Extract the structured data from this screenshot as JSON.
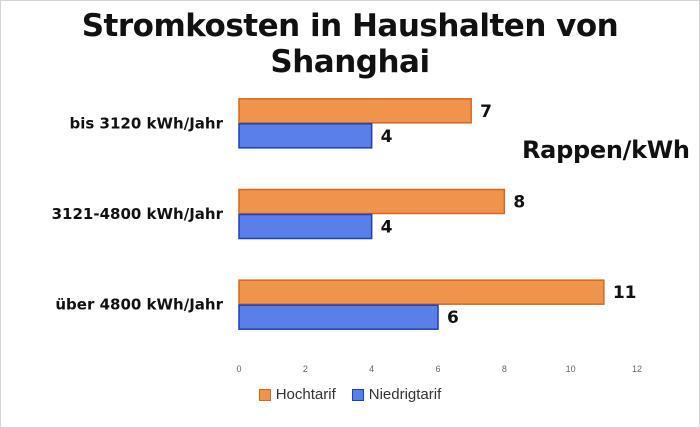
{
  "chart_data": {
    "type": "bar",
    "orientation": "horizontal",
    "title": "Stromkosten in Haushalten von Shanghai",
    "unit_label": "Rappen/kWh",
    "categories": [
      "bis 3120 kWh/Jahr",
      "3121-4800 kWh/Jahr",
      "über 4800 kWh/Jahr"
    ],
    "series": [
      {
        "name": "Hochtarif",
        "values": [
          7,
          8,
          11
        ],
        "color": "#f0944d",
        "border": "#d2691e"
      },
      {
        "name": "Niedrigtarif",
        "values": [
          4,
          4,
          6
        ],
        "color": "#5b7fe8",
        "border": "#1f3fb8"
      }
    ],
    "xlim": [
      0,
      12
    ],
    "xticks": [
      "0",
      "2",
      "4",
      "6",
      "8",
      "10",
      "12"
    ],
    "legend_position": "bottom"
  }
}
